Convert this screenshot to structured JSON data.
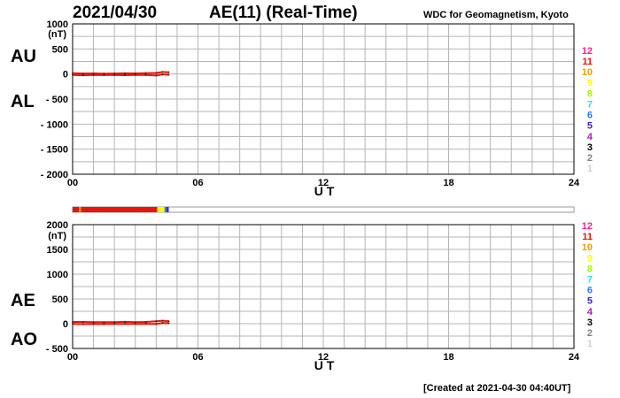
{
  "header": {
    "date": "2021/04/30",
    "title": "AE(11) (Real-Time)",
    "source": "WDC for Geomagnetism, Kyoto"
  },
  "footer": {
    "created": "[Created at 2021-04-30 04:40UT]"
  },
  "legend": {
    "items": [
      {
        "label": "12",
        "color": "#ff1f8f"
      },
      {
        "label": "11",
        "color": "#e8150c"
      },
      {
        "label": "10",
        "color": "#f0a000"
      },
      {
        "label": "9",
        "color": "#ffff00"
      },
      {
        "label": "8",
        "color": "#9aff00"
      },
      {
        "label": "7",
        "color": "#20e8e8"
      },
      {
        "label": "6",
        "color": "#2080ff"
      },
      {
        "label": "5",
        "color": "#3a20c8"
      },
      {
        "label": "4",
        "color": "#c010c8"
      },
      {
        "label": "3",
        "color": "#000000"
      },
      {
        "label": "2",
        "color": "#808080"
      },
      {
        "label": "1",
        "color": "#d0d0d0"
      }
    ]
  },
  "status_bar": {
    "segments": [
      {
        "from": 0.0,
        "to": 4.05,
        "color": "#e8150c"
      },
      {
        "from": 0.3,
        "to": 0.4,
        "color": "#f0a000"
      },
      {
        "from": 4.05,
        "to": 4.4,
        "color": "#ffff00"
      },
      {
        "from": 4.4,
        "to": 4.5,
        "color": "#2080ff"
      },
      {
        "from": 4.5,
        "to": 4.6,
        "color": "#3a20c8"
      }
    ]
  },
  "chart_data": [
    {
      "type": "line",
      "panel_labels": [
        "AU",
        "AL"
      ],
      "ylabel": "(nT)",
      "xlabel": "U T",
      "xlim": [
        0,
        24
      ],
      "ylim": [
        -2000,
        1000
      ],
      "xticks": [
        "00",
        "06",
        "12",
        "18",
        "24"
      ],
      "yticks": [
        "1000",
        "500",
        "0",
        "- 500",
        "- 1000",
        "- 1500",
        "- 2000"
      ],
      "ytick_values": [
        1000,
        500,
        0,
        -500,
        -1000,
        -1500,
        -2000
      ],
      "grid": true,
      "series": [
        {
          "name": "AU",
          "color": "#e8150c",
          "x": [
            0,
            0.5,
            1,
            1.5,
            2,
            2.5,
            3,
            3.5,
            4,
            4.3,
            4.6
          ],
          "y": [
            15,
            10,
            12,
            8,
            10,
            14,
            12,
            16,
            20,
            40,
            35
          ]
        },
        {
          "name": "AL",
          "color": "#e8150c",
          "x": [
            0,
            0.5,
            1,
            1.5,
            2,
            2.5,
            3,
            3.5,
            4,
            4.3,
            4.6
          ],
          "y": [
            -20,
            -25,
            -18,
            -22,
            -20,
            -24,
            -18,
            -20,
            -30,
            -10,
            -15
          ]
        }
      ]
    },
    {
      "type": "line",
      "panel_labels": [
        "AE",
        "AO"
      ],
      "ylabel": "(nT)",
      "xlabel": "U T",
      "xlim": [
        0,
        24
      ],
      "ylim": [
        -500,
        2000
      ],
      "xticks": [
        "00",
        "06",
        "12",
        "18",
        "24"
      ],
      "yticks": [
        "2000",
        "1500",
        "1000",
        "500",
        "0",
        "- 500"
      ],
      "ytick_values": [
        2000,
        1500,
        1000,
        500,
        0,
        -500
      ],
      "grid": true,
      "series": [
        {
          "name": "AE",
          "color": "#e8150c",
          "x": [
            0,
            0.5,
            1,
            1.5,
            2,
            2.5,
            3,
            3.5,
            4,
            4.3,
            4.6
          ],
          "y": [
            35,
            35,
            30,
            30,
            30,
            38,
            30,
            36,
            50,
            60,
            50
          ]
        },
        {
          "name": "AO",
          "color": "#e8150c",
          "x": [
            0,
            0.5,
            1,
            1.5,
            2,
            2.5,
            3,
            3.5,
            4,
            4.3,
            4.6
          ],
          "y": [
            -3,
            -8,
            -3,
            -7,
            -5,
            -5,
            -3,
            -2,
            -5,
            15,
            10
          ]
        }
      ]
    }
  ]
}
